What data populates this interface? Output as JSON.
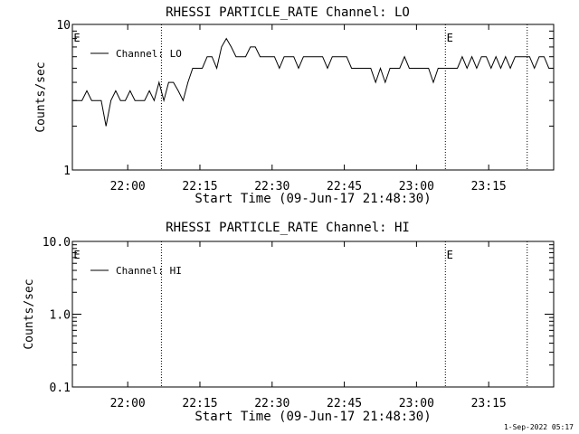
{
  "chart_data": [
    {
      "type": "line",
      "title": "RHESSI PARTICLE_RATE Channel: LO",
      "xlabel": "Start Time (09-Jun-17 21:48:30)",
      "ylabel": "Counts/sec",
      "yscale": "log",
      "ylim": [
        1,
        10
      ],
      "y_ticks": [
        "10",
        "1"
      ],
      "x_ticks": [
        "22:00",
        "22:15",
        "22:30",
        "22:45",
        "23:00",
        "23:15"
      ],
      "x_range_minutes_after_start": [
        0,
        100
      ],
      "legend": {
        "entries": [
          "Channel: LO"
        ],
        "placement": "top-left"
      },
      "event_markers": {
        "label": "E",
        "times": [
          "22:07",
          "23:06",
          "23:23"
        ],
        "labeled": [
          "22:07",
          "23:06"
        ]
      },
      "series": [
        {
          "name": "Channel: LO",
          "x_minutes_after_start": [
            0,
            1,
            2,
            3,
            4,
            5,
            6,
            7,
            8,
            9,
            10,
            11,
            12,
            13,
            14,
            15,
            16,
            17,
            18,
            19,
            20,
            21,
            22,
            23,
            24,
            25,
            26,
            27,
            28,
            29,
            30,
            31,
            32,
            33,
            34,
            35,
            36,
            37,
            38,
            39,
            40,
            41,
            42,
            43,
            44,
            45,
            46,
            47,
            48,
            49,
            50,
            51,
            52,
            53,
            54,
            55,
            56,
            57,
            58,
            59,
            60,
            61,
            62,
            63,
            64,
            65,
            66,
            67,
            68,
            69,
            70,
            71,
            72,
            73,
            74,
            75,
            76,
            77,
            78,
            79,
            80,
            81,
            82,
            83,
            84,
            85,
            86,
            87,
            88,
            89,
            90,
            91,
            92,
            93,
            94,
            95,
            96,
            97,
            98,
            99,
            100
          ],
          "values": [
            3,
            3,
            3,
            3.5,
            3,
            3,
            3,
            2,
            3,
            3.5,
            3,
            3,
            3.5,
            3,
            3,
            3,
            3.5,
            3,
            4,
            3,
            4,
            4,
            3.5,
            3,
            4,
            5,
            5,
            5,
            6,
            6,
            5,
            7,
            8,
            7,
            6,
            6,
            6,
            7,
            7,
            6,
            6,
            6,
            6,
            5,
            6,
            6,
            6,
            5,
            6,
            6,
            6,
            6,
            6,
            5,
            6,
            6,
            6,
            6,
            5,
            5,
            5,
            5,
            5,
            4,
            5,
            4,
            5,
            5,
            5,
            6,
            5,
            5,
            5,
            5,
            5,
            4,
            5,
            5,
            5,
            5,
            5,
            6,
            5,
            6,
            5,
            6,
            6,
            5,
            6,
            5,
            6,
            5,
            6,
            6,
            6,
            6,
            5,
            6,
            6,
            5,
            5
          ]
        }
      ]
    },
    {
      "type": "line",
      "title": "RHESSI PARTICLE_RATE Channel: HI",
      "xlabel": "Start Time (09-Jun-17 21:48:30)",
      "ylabel": "Counts/sec",
      "yscale": "log",
      "ylim": [
        0.1,
        10
      ],
      "y_ticks": [
        "10.0",
        "1.0",
        "0.1"
      ],
      "x_ticks": [
        "22:00",
        "22:15",
        "22:30",
        "22:45",
        "23:00",
        "23:15"
      ],
      "x_range_minutes_after_start": [
        0,
        100
      ],
      "legend": {
        "entries": [
          "Channel: HI"
        ],
        "placement": "top-left"
      },
      "event_markers": {
        "label": "E",
        "times": [
          "22:07",
          "23:06",
          "23:23"
        ],
        "labeled": [
          "22:07",
          "23:06"
        ]
      },
      "series": [
        {
          "name": "Channel: HI",
          "x_minutes_after_start": [],
          "values": []
        }
      ]
    }
  ],
  "footer": {
    "timestamp": "1-Sep-2022 05:17"
  }
}
